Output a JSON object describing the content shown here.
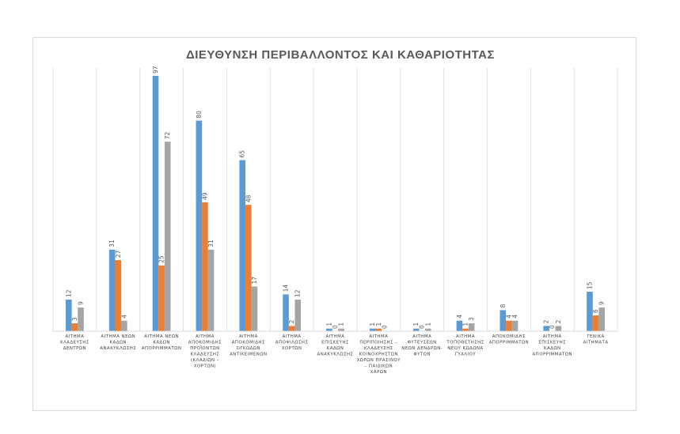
{
  "chart_data": {
    "type": "bar",
    "title": "ΔΙΕΥΘΥΝΣΗ ΠΕΡΙΒΑΛΛΟΝΤΟΣ ΚΑΙ ΚΑΘΑΡΙΟΤΗΤΑΣ",
    "xlabel": "",
    "ylabel": "",
    "ylim": [
      0,
      100
    ],
    "grid": "vertical category separators",
    "legend": "none",
    "categories": [
      [
        "ΑΙΤΗΜΑ",
        "ΚΛΑΔΕΥΣΗΣ",
        "ΔΕΝΤΡΩΝ"
      ],
      [
        "ΑΙΤΗΜΑ ΝΕΩΝ",
        "ΚΑΔΩΝ",
        "ΑΝΑΚΥΚΛΩΣΗΣ"
      ],
      [
        "ΑΙΤΗΜΑ ΝΕΩΝ",
        "ΚΑΔΩΝ",
        "ΑΠΟΡΡΙΜΜΑΤΩΝ"
      ],
      [
        "ΑΙΤΗΜΑ",
        "ΑΠΟΚΟΜΙΔΗΣ",
        "ΠΡΟΪΟΝΤΩΝ",
        "ΚΛΑΔΕΥΣΗΣ",
        "(ΚΛΑΔΙΩΝ –",
        "ΧΟΡΤΩΝ)"
      ],
      [
        "ΑΙΤΗΜΑ",
        "ΑΠΟΚΟΜΙΔΗΣ",
        "ΟΓΚΩΔΩΝ",
        "ΑΝΤΙΚΕΙΜΕΝΩΝ"
      ],
      [
        "ΑΙΤΗΜΑ",
        "ΑΠΟΨΙΛΩΣΗΣ",
        "ΧΟΡΤΩΝ"
      ],
      [
        "ΑΙΤΗΜΑ",
        "ΕΠΙΣΚΕΥΗΣ",
        "ΚΑΔΩΝ",
        "ΑΝΑΚΥΚΛΩΣΗΣ"
      ],
      [
        "ΑΙΤΗΜΑ",
        "ΠΕΡΙΠΟΙΗΣΗΣ –",
        "ΚΛΑΔΕΥΣΗΣ",
        "ΚΟΙΝΟΧΡΗΣΤΩΝ",
        "ΧΩΡΩΝ ΠΡΑΣΙΝΟΥ",
        "– ΠΑΙΔΙΚΩΝ",
        "ΧΑΡΩΝ"
      ],
      [
        "ΑΙΤΗΜΑ",
        "ΦΥΤΕΥΣΕΩΝ",
        "ΝΕΩΝ ΔΕΝΔΡΩΝ-",
        "ΦΥΤΩΝ"
      ],
      [
        "ΑΙΤΗΜΑ",
        "ΤΟΠΟΘΕΤΗΣΗΣ",
        "ΝΕΟΥ ΚΩΔΩΝΑ",
        "ΓΥΑΛΙΟΥ"
      ],
      [
        "ΑΠΟΚΟΜΙΔΗΣ",
        "ΑΠΟΡΡΙΜΜΑΤΩΝ"
      ],
      [
        "ΑΙΤΗΜΑ",
        "ΕΠΙΣΚΕΥΗΣ",
        "ΚΑΔΩΝ",
        "ΑΠΟΡΡΙΜΜΑΤΩΝ"
      ],
      [
        "ΓΕΝΙΚΑ",
        "ΑΙΤΗΜΑΤΑ"
      ]
    ],
    "series": [
      {
        "color": "#5B9BD5",
        "values": [
          12,
          31,
          97,
          80,
          65,
          14,
          1,
          1,
          1,
          4,
          8,
          2,
          15
        ]
      },
      {
        "color": "#ED7D31",
        "values": [
          3,
          27,
          25,
          49,
          48,
          2,
          0,
          1,
          0,
          1,
          4,
          0,
          6
        ]
      },
      {
        "color": "#A5A5A5",
        "values": [
          9,
          4,
          72,
          31,
          17,
          12,
          1,
          0,
          1,
          3,
          4,
          2,
          9
        ]
      }
    ]
  }
}
